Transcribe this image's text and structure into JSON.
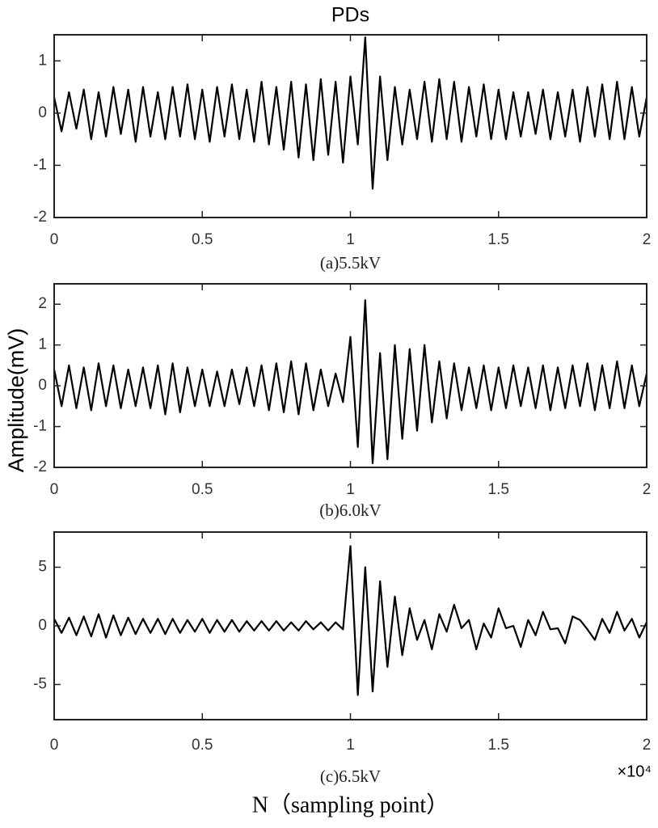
{
  "chart_data": [
    {
      "type": "line",
      "title": "PDs",
      "caption": "(a)5.5kV",
      "color": "#000000",
      "x": [
        0,
        0.025,
        0.05,
        0.075,
        0.1,
        0.125,
        0.15,
        0.175,
        0.2,
        0.225,
        0.25,
        0.275,
        0.3,
        0.325,
        0.35,
        0.375,
        0.4,
        0.425,
        0.45,
        0.475,
        0.5,
        0.525,
        0.55,
        0.575,
        0.6,
        0.625,
        0.65,
        0.675,
        0.7,
        0.725,
        0.75,
        0.775,
        0.8,
        0.825,
        0.85,
        0.875,
        0.9,
        0.925,
        0.95,
        0.975,
        1,
        1.025,
        1.05,
        1.075,
        1.1,
        1.125,
        1.15,
        1.175,
        1.2,
        1.225,
        1.25,
        1.275,
        1.3,
        1.325,
        1.35,
        1.375,
        1.4,
        1.425,
        1.45,
        1.475,
        1.5,
        1.525,
        1.55,
        1.575,
        1.6,
        1.625,
        1.65,
        1.675,
        1.7,
        1.725,
        1.75,
        1.775,
        1.8,
        1.825,
        1.85,
        1.875,
        1.9,
        1.925,
        1.95,
        1.975,
        2
      ],
      "values": [
        0.3,
        -0.35,
        0.4,
        -0.3,
        0.45,
        -0.5,
        0.4,
        -0.45,
        0.5,
        -0.4,
        0.45,
        -0.55,
        0.5,
        -0.45,
        0.4,
        -0.5,
        0.5,
        -0.45,
        0.55,
        -0.5,
        0.45,
        -0.55,
        0.5,
        -0.45,
        0.55,
        -0.5,
        0.45,
        -0.55,
        0.6,
        -0.6,
        0.5,
        -0.7,
        0.6,
        -0.85,
        0.55,
        -0.9,
        0.65,
        -0.8,
        0.6,
        -0.95,
        0.7,
        -0.6,
        1.45,
        -1.45,
        0.7,
        -0.9,
        0.5,
        -0.6,
        0.45,
        -0.5,
        0.6,
        -0.55,
        0.65,
        -0.5,
        0.6,
        -0.55,
        0.5,
        -0.45,
        0.55,
        -0.5,
        0.45,
        -0.5,
        0.4,
        -0.45,
        0.4,
        -0.4,
        0.45,
        -0.5,
        0.4,
        -0.45,
        0.45,
        -0.55,
        0.5,
        -0.45,
        0.55,
        -0.5,
        0.6,
        -0.5,
        0.5,
        -0.45,
        0.3
      ],
      "xlim": [
        0,
        2
      ],
      "xticks": [
        0,
        0.5,
        1,
        1.5,
        2
      ],
      "ylim": [
        -2,
        1.5
      ],
      "yticks": [
        -2,
        -1,
        0,
        1
      ]
    },
    {
      "type": "line",
      "caption": "(b)6.0kV",
      "ylabel": "Amplitude(mV)",
      "color": "#000000",
      "x": [
        0,
        0.025,
        0.05,
        0.075,
        0.1,
        0.125,
        0.15,
        0.175,
        0.2,
        0.225,
        0.25,
        0.275,
        0.3,
        0.325,
        0.35,
        0.375,
        0.4,
        0.425,
        0.45,
        0.475,
        0.5,
        0.525,
        0.55,
        0.575,
        0.6,
        0.625,
        0.65,
        0.675,
        0.7,
        0.725,
        0.75,
        0.775,
        0.8,
        0.825,
        0.85,
        0.875,
        0.9,
        0.925,
        0.95,
        0.975,
        1,
        1.025,
        1.05,
        1.075,
        1.1,
        1.125,
        1.15,
        1.175,
        1.2,
        1.225,
        1.25,
        1.275,
        1.3,
        1.325,
        1.35,
        1.375,
        1.4,
        1.425,
        1.45,
        1.475,
        1.5,
        1.525,
        1.55,
        1.575,
        1.6,
        1.625,
        1.65,
        1.675,
        1.7,
        1.725,
        1.75,
        1.775,
        1.8,
        1.825,
        1.85,
        1.875,
        1.9,
        1.925,
        1.95,
        1.975,
        2
      ],
      "values": [
        0.4,
        -0.5,
        0.5,
        -0.55,
        0.45,
        -0.6,
        0.55,
        -0.5,
        0.5,
        -0.55,
        0.4,
        -0.5,
        0.45,
        -0.55,
        0.5,
        -0.7,
        0.55,
        -0.65,
        0.45,
        -0.5,
        0.4,
        -0.5,
        0.35,
        -0.5,
        0.4,
        -0.45,
        0.45,
        -0.5,
        0.5,
        -0.6,
        0.55,
        -0.65,
        0.6,
        -0.7,
        0.55,
        -0.6,
        0.4,
        -0.5,
        0.3,
        -0.4,
        1.2,
        -1.5,
        2.1,
        -1.9,
        0.8,
        -1.8,
        1.0,
        -1.3,
        0.9,
        -1.1,
        1.0,
        -0.9,
        0.6,
        -0.8,
        0.55,
        -0.6,
        0.45,
        -0.55,
        0.5,
        -0.6,
        0.45,
        -0.55,
        0.5,
        -0.5,
        0.45,
        -0.55,
        0.5,
        -0.6,
        0.45,
        -0.55,
        0.5,
        -0.5,
        0.55,
        -0.6,
        0.5,
        -0.55,
        0.6,
        -0.55,
        0.5,
        -0.5,
        0.3
      ],
      "xlim": [
        0,
        2
      ],
      "xticks": [
        0,
        0.5,
        1,
        1.5,
        2
      ],
      "ylim": [
        -2,
        2.5
      ],
      "yticks": [
        -2,
        -1,
        0,
        1,
        2
      ]
    },
    {
      "type": "line",
      "caption": "(c)6.5kV",
      "xlabel": "N（sampling point）",
      "x_multiplier": "×10⁴",
      "color": "#000000",
      "x": [
        0,
        0.025,
        0.05,
        0.075,
        0.1,
        0.125,
        0.15,
        0.175,
        0.2,
        0.225,
        0.25,
        0.275,
        0.3,
        0.325,
        0.35,
        0.375,
        0.4,
        0.425,
        0.45,
        0.475,
        0.5,
        0.525,
        0.55,
        0.575,
        0.6,
        0.625,
        0.65,
        0.675,
        0.7,
        0.725,
        0.75,
        0.775,
        0.8,
        0.825,
        0.85,
        0.875,
        0.9,
        0.925,
        0.95,
        0.975,
        1,
        1.025,
        1.05,
        1.075,
        1.1,
        1.125,
        1.15,
        1.175,
        1.2,
        1.225,
        1.25,
        1.275,
        1.3,
        1.325,
        1.35,
        1.375,
        1.4,
        1.425,
        1.45,
        1.475,
        1.5,
        1.525,
        1.55,
        1.575,
        1.6,
        1.625,
        1.65,
        1.675,
        1.7,
        1.725,
        1.75,
        1.775,
        1.8,
        1.825,
        1.85,
        1.875,
        1.9,
        1.925,
        1.95,
        1.975,
        2
      ],
      "values": [
        0.6,
        -0.6,
        0.7,
        -0.8,
        0.8,
        -0.9,
        1.0,
        -1.0,
        0.9,
        -0.8,
        0.7,
        -0.7,
        0.6,
        -0.6,
        0.6,
        -0.7,
        0.6,
        -0.6,
        0.5,
        -0.5,
        0.6,
        -0.6,
        0.5,
        -0.5,
        0.5,
        -0.5,
        0.4,
        -0.4,
        0.4,
        -0.4,
        0.4,
        -0.4,
        0.3,
        -0.4,
        0.4,
        -0.3,
        0.3,
        -0.4,
        0.3,
        -0.3,
        6.8,
        -5.9,
        5.0,
        -5.6,
        3.8,
        -3.5,
        2.5,
        -2.5,
        1.5,
        -1.2,
        0.5,
        -2.0,
        1.0,
        -0.5,
        1.8,
        -0.2,
        0.5,
        -2.0,
        0.2,
        -1.0,
        1.5,
        -0.2,
        0.0,
        -1.8,
        0.5,
        -0.8,
        1.2,
        -0.3,
        -0.2,
        -1.5,
        0.8,
        0.5,
        -0.3,
        -1.2,
        0.6,
        -0.6,
        1.2,
        -0.4,
        0.6,
        -1.0,
        0.3
      ],
      "xlim": [
        0,
        2
      ],
      "xticks": [
        0,
        0.5,
        1,
        1.5,
        2
      ],
      "ylim": [
        -8,
        8
      ],
      "yticks": [
        -5,
        0,
        5
      ]
    }
  ]
}
